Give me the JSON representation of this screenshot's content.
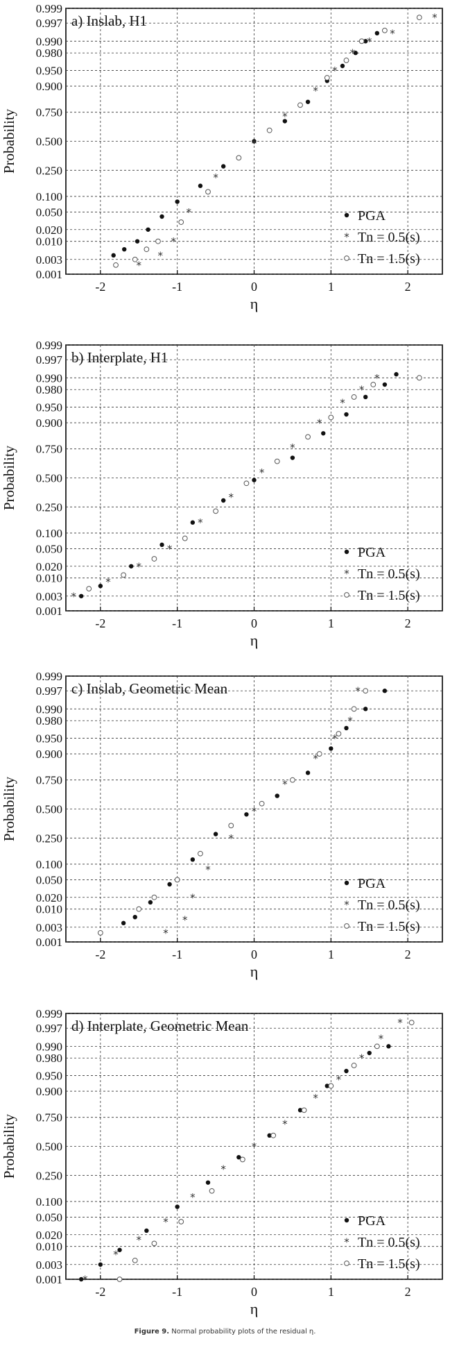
{
  "figure": {
    "caption_label": "Figure 9.",
    "caption_text": "Normal probability plots of the residual η."
  },
  "colors": {
    "pga": "#111111",
    "tn05": "#333333",
    "tn15": "#555555",
    "grid": "#333333"
  },
  "chart_data": [
    {
      "type": "scatter",
      "title": "a) Inslab, H1",
      "xlabel": "η",
      "ylabel": "Probability",
      "x_ticks": [
        -2,
        -1,
        0,
        1,
        2
      ],
      "y_ticks": [
        "0.001",
        "0.003",
        "0.010",
        "0.020",
        "0.050",
        "0.100",
        "0.250",
        "0.500",
        "0.750",
        "0.900",
        "0.950",
        "0.980",
        "0.990",
        "0.997",
        "0.999"
      ],
      "xlim": [
        -2.45,
        2.45
      ],
      "ylim": [
        0.001,
        0.999
      ],
      "y_scale": "normal-probability",
      "grid": true,
      "legend_position": "bottom-right",
      "series": [
        {
          "name": "PGA",
          "marker": "filled-circle",
          "x": [
            -1.83,
            -1.69,
            -1.52,
            -1.38,
            -1.2,
            -1.0,
            -0.7,
            -0.4,
            0.0,
            0.4,
            0.7,
            0.95,
            1.15,
            1.32,
            1.45,
            1.6
          ],
          "prob": [
            0.004,
            0.006,
            0.01,
            0.02,
            0.04,
            0.08,
            0.15,
            0.28,
            0.5,
            0.68,
            0.82,
            0.92,
            0.96,
            0.98,
            0.99,
            0.994
          ]
        },
        {
          "name": "Tn = 0.5(s)",
          "marker": "asterisk",
          "x": [
            -1.5,
            -1.22,
            -1.05,
            -0.85,
            -0.5,
            0.0,
            0.4,
            0.8,
            1.05,
            1.28,
            1.5,
            1.8,
            2.35
          ],
          "prob": [
            0.002,
            0.004,
            0.01,
            0.05,
            0.2,
            0.48,
            0.72,
            0.88,
            0.95,
            0.98,
            0.99,
            0.994,
            0.998
          ]
        },
        {
          "name": "Tn = 1.5(s)",
          "marker": "open-circle",
          "x": [
            -1.8,
            -1.55,
            -1.4,
            -1.25,
            -0.95,
            -0.6,
            -0.2,
            0.2,
            0.6,
            0.95,
            1.2,
            1.4,
            1.7,
            2.15
          ],
          "prob": [
            0.002,
            0.003,
            0.006,
            0.01,
            0.03,
            0.12,
            0.35,
            0.6,
            0.8,
            0.93,
            0.97,
            0.99,
            0.995,
            0.998
          ]
        }
      ]
    },
    {
      "type": "scatter",
      "title": "b) Interplate, H1",
      "xlabel": "η",
      "ylabel": "Probability",
      "x_ticks": [
        -2,
        -1,
        0,
        1,
        2
      ],
      "y_ticks": [
        "0.001",
        "0.003",
        "0.010",
        "0.020",
        "0.050",
        "0.100",
        "0.250",
        "0.500",
        "0.750",
        "0.900",
        "0.950",
        "0.980",
        "0.990",
        "0.997",
        "0.999"
      ],
      "xlim": [
        -2.45,
        2.45
      ],
      "ylim": [
        0.001,
        0.999
      ],
      "y_scale": "normal-probability",
      "grid": true,
      "legend_position": "bottom-right",
      "series": [
        {
          "name": "PGA",
          "marker": "filled-circle",
          "x": [
            -2.25,
            -2.0,
            -1.6,
            -1.2,
            -0.8,
            -0.4,
            0.0,
            0.5,
            0.9,
            1.2,
            1.45,
            1.7,
            1.85
          ],
          "prob": [
            0.003,
            0.006,
            0.02,
            0.06,
            0.15,
            0.3,
            0.48,
            0.68,
            0.85,
            0.93,
            0.97,
            0.985,
            0.992
          ]
        },
        {
          "name": "Tn = 0.5(s)",
          "marker": "asterisk",
          "x": [
            -2.35,
            -1.9,
            -1.5,
            -1.1,
            -0.7,
            -0.3,
            0.1,
            0.5,
            0.85,
            1.15,
            1.4,
            1.6
          ],
          "prob": [
            0.003,
            0.008,
            0.02,
            0.05,
            0.15,
            0.33,
            0.55,
            0.76,
            0.9,
            0.96,
            0.98,
            0.99
          ]
        },
        {
          "name": "Tn = 1.5(s)",
          "marker": "open-circle",
          "x": [
            -2.15,
            -1.7,
            -1.3,
            -0.9,
            -0.5,
            -0.1,
            0.3,
            0.7,
            1.0,
            1.3,
            1.55,
            2.15
          ],
          "prob": [
            0.005,
            0.012,
            0.03,
            0.08,
            0.22,
            0.45,
            0.65,
            0.83,
            0.92,
            0.97,
            0.985,
            0.99
          ]
        }
      ]
    },
    {
      "type": "scatter",
      "title": "c) Inslab, Geometric Mean",
      "xlabel": "η",
      "ylabel": "Probability",
      "x_ticks": [
        -2,
        -1,
        0,
        1,
        2
      ],
      "y_ticks": [
        "0.001",
        "0.003",
        "0.010",
        "0.020",
        "0.050",
        "0.100",
        "0.250",
        "0.500",
        "0.750",
        "0.900",
        "0.950",
        "0.980",
        "0.990",
        "0.997",
        "0.999"
      ],
      "xlim": [
        -2.45,
        2.45
      ],
      "ylim": [
        0.001,
        0.999
      ],
      "y_scale": "normal-probability",
      "grid": true,
      "legend_position": "bottom-right",
      "series": [
        {
          "name": "PGA",
          "marker": "filled-circle",
          "x": [
            -1.7,
            -1.55,
            -1.35,
            -1.1,
            -0.8,
            -0.5,
            -0.1,
            0.3,
            0.7,
            1.0,
            1.2,
            1.45,
            1.7
          ],
          "prob": [
            0.004,
            0.006,
            0.015,
            0.04,
            0.12,
            0.28,
            0.45,
            0.62,
            0.8,
            0.92,
            0.97,
            0.99,
            0.997
          ]
        },
        {
          "name": "Tn = 0.5(s)",
          "marker": "asterisk",
          "x": [
            -1.15,
            -0.9,
            -0.8,
            -0.6,
            -0.3,
            0.0,
            0.4,
            0.8,
            1.05,
            1.25,
            1.35
          ],
          "prob": [
            0.002,
            0.005,
            0.02,
            0.08,
            0.25,
            0.48,
            0.72,
            0.88,
            0.95,
            0.98,
            0.997
          ]
        },
        {
          "name": "Tn = 1.5(s)",
          "marker": "open-circle",
          "x": [
            -2.0,
            -1.5,
            -1.3,
            -1.0,
            -0.7,
            -0.3,
            0.1,
            0.5,
            0.85,
            1.1,
            1.3,
            1.45
          ],
          "prob": [
            0.002,
            0.01,
            0.02,
            0.05,
            0.15,
            0.35,
            0.55,
            0.75,
            0.9,
            0.96,
            0.99,
            0.997
          ]
        }
      ]
    },
    {
      "type": "scatter",
      "title": "d) Interplate, Geometric Mean",
      "xlabel": "η",
      "ylabel": "Probability",
      "x_ticks": [
        -2,
        -1,
        0,
        1,
        2
      ],
      "y_ticks": [
        "0.001",
        "0.003",
        "0.010",
        "0.020",
        "0.050",
        "0.100",
        "0.250",
        "0.500",
        "0.750",
        "0.900",
        "0.950",
        "0.980",
        "0.990",
        "0.997",
        "0.999"
      ],
      "xlim": [
        -2.45,
        2.45
      ],
      "ylim": [
        0.001,
        0.999
      ],
      "y_scale": "normal-probability",
      "grid": true,
      "legend_position": "bottom-right",
      "series": [
        {
          "name": "PGA",
          "marker": "filled-circle",
          "x": [
            -2.25,
            -2.0,
            -1.75,
            -1.4,
            -1.0,
            -0.6,
            -0.2,
            0.2,
            0.6,
            0.95,
            1.2,
            1.5,
            1.75,
            2.05
          ],
          "prob": [
            0.001,
            0.003,
            0.008,
            0.025,
            0.08,
            0.2,
            0.4,
            0.6,
            0.8,
            0.92,
            0.96,
            0.985,
            0.99,
            0.998
          ]
        },
        {
          "name": "Tn = 0.5(s)",
          "marker": "asterisk",
          "x": [
            -2.2,
            -1.8,
            -1.5,
            -1.15,
            -0.8,
            -0.4,
            0.0,
            0.4,
            0.8,
            1.1,
            1.4,
            1.65,
            1.9
          ],
          "prob": [
            0.001,
            0.006,
            0.015,
            0.04,
            0.12,
            0.3,
            0.5,
            0.7,
            0.87,
            0.94,
            0.98,
            0.994,
            0.998
          ]
        },
        {
          "name": "Tn = 1.5(s)",
          "marker": "open-circle",
          "x": [
            -1.75,
            -1.55,
            -1.3,
            -0.95,
            -0.55,
            -0.15,
            0.25,
            0.65,
            1.0,
            1.3,
            1.6,
            2.05
          ],
          "prob": [
            0.001,
            0.004,
            0.012,
            0.04,
            0.15,
            0.38,
            0.6,
            0.8,
            0.92,
            0.97,
            0.99,
            0.998
          ]
        }
      ]
    }
  ]
}
